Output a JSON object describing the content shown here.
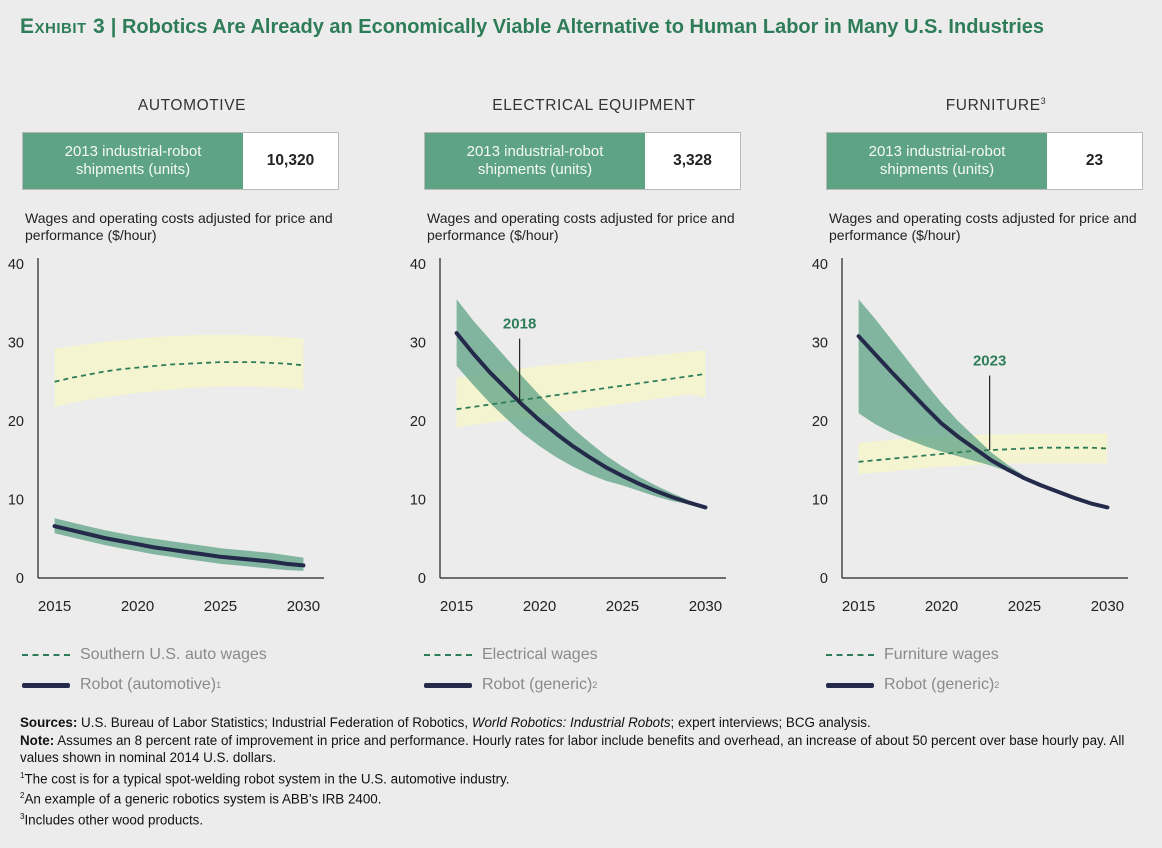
{
  "title": {
    "exhibit": "Exhibit 3",
    "separator": "|",
    "text": "Robotics Are Already an Economically Viable Alternative to Human Labor in Many U.S. Industries"
  },
  "colors": {
    "wage_band": "#f4f4d0",
    "robot_band": "#5fa385",
    "robot_line": "#242a4a",
    "wage_line": "#2e7d58",
    "title": "#2e7d58",
    "kpi_bg": "#5fa385"
  },
  "kpi_label": "2013 industrial-robot shipments (units)",
  "ylabel": "Wages and operating costs adjusted for price and performance ($/hour)",
  "chart_data": [
    {
      "type": "line",
      "title": "AUTOMOTIVE",
      "title_sup": "",
      "shipments": "10,320",
      "ylabel": "Wages and operating costs adjusted for price and performance ($/hour)",
      "xlim": [
        2014,
        2031
      ],
      "ylim": [
        0,
        40
      ],
      "xticks": [
        2015,
        2020,
        2025,
        2030
      ],
      "yticks": [
        0,
        10,
        20,
        30,
        40
      ],
      "x": [
        2015,
        2016,
        2017,
        2018,
        2019,
        2020,
        2021,
        2022,
        2023,
        2024,
        2025,
        2026,
        2027,
        2028,
        2029,
        2030
      ],
      "series": [
        {
          "name": "Southern U.S. auto wages",
          "style": "dashed",
          "values": [
            25.0,
            25.5,
            25.9,
            26.3,
            26.6,
            26.8,
            27.0,
            27.2,
            27.3,
            27.4,
            27.5,
            27.5,
            27.5,
            27.4,
            27.3,
            27.1
          ],
          "band_upper": [
            29.2,
            29.5,
            29.8,
            30.1,
            30.3,
            30.5,
            30.7,
            30.8,
            30.9,
            31.0,
            31.0,
            31.0,
            30.9,
            30.8,
            30.7,
            30.5
          ],
          "band_lower": [
            21.8,
            22.3,
            22.7,
            23.0,
            23.3,
            23.6,
            23.8,
            24.0,
            24.2,
            24.3,
            24.4,
            24.4,
            24.4,
            24.3,
            24.2,
            24.0
          ]
        },
        {
          "name": "Robot (automotive)",
          "name_sup": "1",
          "style": "solid",
          "values": [
            6.6,
            6.1,
            5.6,
            5.1,
            4.7,
            4.3,
            3.9,
            3.6,
            3.3,
            3.0,
            2.7,
            2.5,
            2.3,
            2.1,
            1.8,
            1.6
          ],
          "band_upper": [
            7.6,
            7.1,
            6.6,
            6.1,
            5.7,
            5.3,
            5.0,
            4.7,
            4.4,
            4.1,
            3.8,
            3.6,
            3.4,
            3.2,
            2.9,
            2.6
          ],
          "band_lower": [
            5.7,
            5.2,
            4.7,
            4.2,
            3.8,
            3.4,
            3.0,
            2.7,
            2.4,
            2.1,
            1.8,
            1.6,
            1.4,
            1.2,
            1.0,
            0.9
          ]
        }
      ],
      "annotation": null
    },
    {
      "type": "line",
      "title": "ELECTRICAL EQUIPMENT",
      "title_sup": "",
      "shipments": "3,328",
      "ylabel": "Wages and operating costs adjusted for price and performance ($/hour)",
      "xlim": [
        2014,
        2031
      ],
      "ylim": [
        0,
        40
      ],
      "xticks": [
        2015,
        2020,
        2025,
        2030
      ],
      "yticks": [
        0,
        10,
        20,
        30,
        40
      ],
      "x": [
        2015,
        2016,
        2017,
        2018,
        2019,
        2020,
        2021,
        2022,
        2023,
        2024,
        2025,
        2026,
        2027,
        2028,
        2029,
        2030
      ],
      "series": [
        {
          "name": "Electrical wages",
          "style": "dashed",
          "values": [
            21.5,
            21.8,
            22.1,
            22.4,
            22.7,
            23.0,
            23.3,
            23.6,
            23.9,
            24.2,
            24.5,
            24.8,
            25.1,
            25.4,
            25.7,
            26.0
          ],
          "band_upper": [
            25.5,
            25.8,
            26.1,
            26.4,
            26.7,
            27.0,
            27.2,
            27.4,
            27.6,
            27.8,
            28.0,
            28.2,
            28.4,
            28.6,
            28.8,
            29.0
          ],
          "band_lower": [
            19.2,
            19.5,
            19.8,
            20.1,
            20.4,
            20.7,
            21.0,
            21.3,
            21.6,
            21.9,
            22.2,
            22.5,
            22.8,
            23.1,
            23.4,
            23.0
          ]
        },
        {
          "name": "Robot (generic)",
          "name_sup": "2",
          "style": "solid",
          "values": [
            31.2,
            28.6,
            26.2,
            24.1,
            22.0,
            20.1,
            18.4,
            16.8,
            15.4,
            14.1,
            13.0,
            12.0,
            11.1,
            10.3,
            9.6,
            9.0
          ],
          "band_upper": [
            35.5,
            32.8,
            30.4,
            28.0,
            25.6,
            23.3,
            21.2,
            19.1,
            17.3,
            15.6,
            14.2,
            12.9,
            11.8,
            10.8,
            9.9,
            9.1
          ],
          "band_lower": [
            27.0,
            24.6,
            22.3,
            20.3,
            18.4,
            16.8,
            15.4,
            14.2,
            13.2,
            12.4,
            11.8,
            11.1,
            10.4,
            9.8,
            9.4,
            9.0
          ]
        }
      ],
      "annotation": {
        "label": "2018",
        "x": 2018.8,
        "y": 22.3,
        "label_y": 31.0
      }
    },
    {
      "type": "line",
      "title": "FURNITURE",
      "title_sup": "3",
      "shipments": "23",
      "ylabel": "Wages and operating costs adjusted for price and performance ($/hour)",
      "xlim": [
        2014,
        2031
      ],
      "ylim": [
        0,
        40
      ],
      "xticks": [
        2015,
        2020,
        2025,
        2030
      ],
      "yticks": [
        0,
        10,
        20,
        30,
        40
      ],
      "x": [
        2015,
        2016,
        2017,
        2018,
        2019,
        2020,
        2021,
        2022,
        2023,
        2024,
        2025,
        2026,
        2027,
        2028,
        2029,
        2030
      ],
      "series": [
        {
          "name": "Furniture wages",
          "style": "dashed",
          "values": [
            14.8,
            15.0,
            15.2,
            15.4,
            15.6,
            15.8,
            16.0,
            16.2,
            16.3,
            16.4,
            16.5,
            16.6,
            16.6,
            16.6,
            16.6,
            16.5
          ],
          "band_upper": [
            17.2,
            17.4,
            17.6,
            17.8,
            17.9,
            18.0,
            18.1,
            18.2,
            18.3,
            18.3,
            18.4,
            18.4,
            18.4,
            18.4,
            18.4,
            18.4
          ],
          "band_lower": [
            13.2,
            13.4,
            13.6,
            13.8,
            14.0,
            14.2,
            14.3,
            14.4,
            14.5,
            14.6,
            14.6,
            14.6,
            14.6,
            14.6,
            14.6,
            14.6
          ]
        },
        {
          "name": "Robot (generic)",
          "name_sup": "2",
          "style": "solid",
          "values": [
            30.8,
            28.5,
            26.2,
            24.0,
            21.8,
            19.7,
            18.0,
            16.5,
            15.0,
            13.8,
            12.7,
            11.8,
            11.0,
            10.2,
            9.5,
            9.0
          ],
          "band_upper": [
            35.5,
            33.0,
            30.3,
            27.6,
            24.9,
            22.3,
            20.0,
            18.0,
            16.0,
            14.4,
            13.0,
            12.0,
            11.1,
            10.3,
            9.6,
            9.0
          ],
          "band_lower": [
            21.0,
            19.6,
            18.5,
            17.6,
            16.8,
            16.1,
            15.5,
            14.9,
            14.3,
            13.6,
            12.8,
            11.9,
            11.1,
            10.3,
            9.6,
            9.0
          ]
        }
      ],
      "annotation": {
        "label": "2023",
        "x": 2022.9,
        "y": 16.3,
        "label_y": 26.3
      }
    }
  ],
  "notes": [
    {
      "bold": "Sources:",
      "text": "U.S. Bureau of Labor Statistics; Industrial Federation of Robotics, ",
      "italic": "World Robotics: Industrial Robots",
      "tail": "; expert interviews; BCG analysis."
    },
    {
      "bold": "Note:",
      "text": "Assumes an 8 percent rate of improvement in price and performance. Hourly rates for labor include benefits and overhead, an increase of about 50 percent over base hourly pay. All values shown in nominal 2014 U.S. dollars.",
      "italic": "",
      "tail": ""
    }
  ],
  "footnotes": [
    {
      "sup": "1",
      "text": "The cost is for a typical spot-welding robot system in the U.S. automotive industry."
    },
    {
      "sup": "2",
      "text": "An example of a generic robotics system is ABB’s IRB 2400."
    },
    {
      "sup": "3",
      "text": "Includes other wood products."
    }
  ]
}
